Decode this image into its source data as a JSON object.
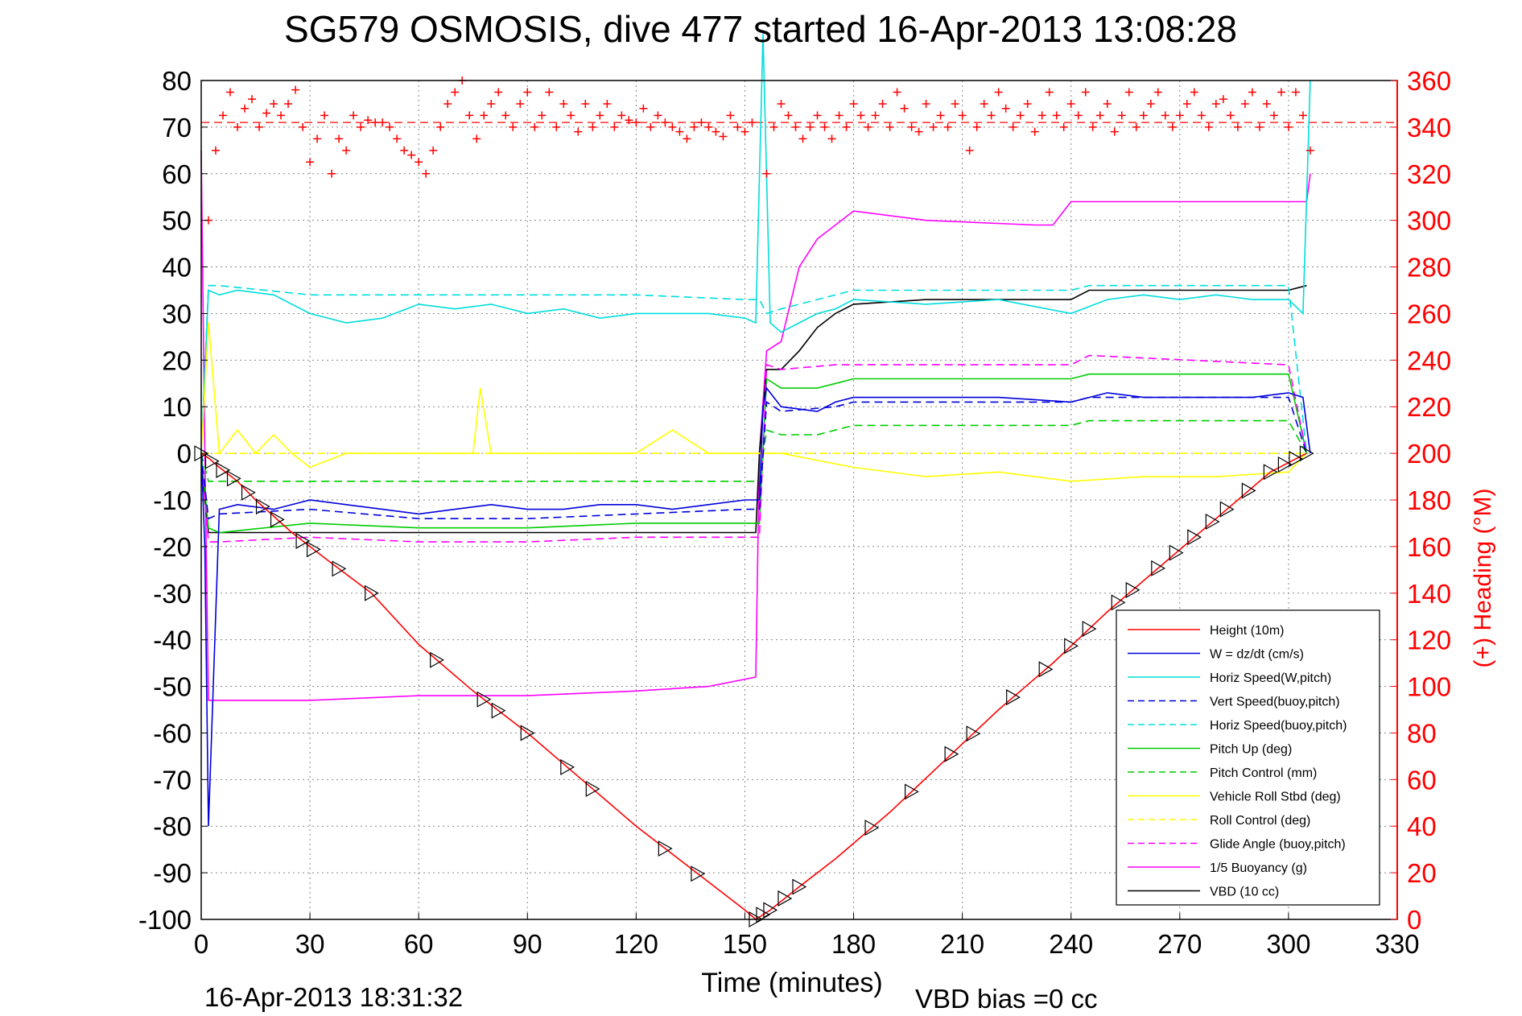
{
  "chart_data": {
    "type": "line",
    "title": "SG579 OSMOSIS, dive 477 started 16-Apr-2013 13:08:28",
    "xlabel": "Time (minutes)",
    "ylabel_right": "(+) Heading (°M)",
    "footer_left": "16-Apr-2013 18:31:32",
    "footer_right": "VBD bias =0 cc",
    "xlim": [
      0,
      330
    ],
    "ylim_left": [
      -100,
      80
    ],
    "ylim_right": [
      0,
      360
    ],
    "x_ticks": [
      0,
      30,
      60,
      90,
      120,
      150,
      180,
      210,
      240,
      270,
      300,
      330
    ],
    "y_ticks_left": [
      80,
      70,
      60,
      50,
      40,
      30,
      20,
      10,
      0,
      -10,
      -20,
      -30,
      -40,
      -50,
      -60,
      -70,
      -80,
      -90,
      -100
    ],
    "y_ticks_right": [
      360,
      340,
      320,
      300,
      280,
      260,
      240,
      220,
      200,
      180,
      160,
      140,
      120,
      100,
      80,
      60,
      40,
      20,
      0
    ],
    "grid": true,
    "legend_position": "lower-right",
    "heading_reference": 342,
    "series": [
      {
        "name": "Height (10m)",
        "color": "#ff0000",
        "style": "solid",
        "axis": "left",
        "x": [
          0,
          2,
          5,
          10,
          15,
          25,
          35,
          47,
          60,
          75,
          90,
          105,
          120,
          135,
          150,
          153,
          157,
          165,
          175,
          190,
          205,
          220,
          235,
          250,
          265,
          280,
          295,
          305
        ],
        "y": [
          0,
          -1,
          -3,
          -6,
          -10,
          -17,
          -23,
          -30,
          -41,
          -51,
          -60,
          -70,
          -80,
          -89,
          -98,
          -100,
          -98,
          -93,
          -87,
          -77,
          -66,
          -55,
          -45,
          -34,
          -24,
          -14,
          -4,
          0
        ]
      },
      {
        "name": "W = dz/dt (cm/s)",
        "color": "#0000dd",
        "style": "solid",
        "axis": "left",
        "x": [
          0,
          1,
          2,
          5,
          10,
          20,
          30,
          40,
          50,
          60,
          70,
          80,
          90,
          100,
          110,
          120,
          130,
          140,
          150,
          154,
          155,
          156,
          160,
          170,
          175,
          180,
          200,
          220,
          240,
          250,
          260,
          270,
          280,
          290,
          300,
          304,
          306
        ],
        "y": [
          0,
          -20,
          -80,
          -12,
          -11,
          -12,
          -10,
          -11,
          -12,
          -13,
          -12,
          -11,
          -12,
          -12,
          -11,
          -11,
          -12,
          -11,
          -10,
          -10,
          10,
          14,
          10,
          9,
          11,
          12,
          12,
          12,
          11,
          13,
          12,
          12,
          12,
          12,
          13,
          12,
          0
        ]
      },
      {
        "name": "Horiz Speed(W,pitch)",
        "color": "#00dddd",
        "style": "solid",
        "axis": "left",
        "x": [
          0,
          2,
          5,
          10,
          20,
          30,
          40,
          50,
          60,
          70,
          80,
          90,
          100,
          110,
          120,
          130,
          140,
          150,
          153,
          155,
          157,
          160,
          165,
          170,
          175,
          180,
          200,
          220,
          240,
          250,
          260,
          270,
          280,
          290,
          300,
          304,
          306
        ],
        "y": [
          0,
          35,
          34,
          35,
          34,
          30,
          28,
          29,
          32,
          31,
          32,
          30,
          31,
          29,
          30,
          30,
          30,
          29,
          28,
          90,
          28,
          26,
          28,
          30,
          31,
          33,
          32,
          33,
          30,
          33,
          34,
          33,
          34,
          33,
          33,
          30,
          80
        ]
      },
      {
        "name": "Vert Speed(buoy,pitch)",
        "color": "#0000dd",
        "style": "dashed",
        "axis": "left",
        "x": [
          0,
          2,
          5,
          30,
          60,
          90,
          120,
          150,
          154,
          156,
          160,
          175,
          180,
          240,
          245,
          300,
          305
        ],
        "y": [
          0,
          -14,
          -13,
          -12,
          -14,
          -14,
          -13,
          -12,
          -12,
          11,
          9,
          10,
          11,
          11,
          12,
          12,
          0
        ]
      },
      {
        "name": "Horiz Speed(buoy,pitch)",
        "color": "#00dddd",
        "style": "dashed",
        "axis": "left",
        "x": [
          0,
          2,
          5,
          30,
          60,
          90,
          120,
          150,
          154,
          156,
          160,
          175,
          180,
          240,
          245,
          300,
          305
        ],
        "y": [
          0,
          36,
          36,
          34,
          34,
          34,
          34,
          33,
          33,
          30,
          31,
          34,
          35,
          35,
          36,
          36,
          0
        ]
      },
      {
        "name": "Pitch Up (deg)",
        "color": "#00cc00",
        "style": "solid",
        "axis": "left",
        "x": [
          0,
          2,
          5,
          30,
          60,
          90,
          120,
          150,
          154,
          156,
          160,
          170,
          175,
          180,
          240,
          245,
          300,
          305
        ],
        "y": [
          0,
          -16,
          -17,
          -15,
          -16,
          -16,
          -15,
          -15,
          -15,
          16,
          14,
          14,
          15,
          16,
          16,
          17,
          17,
          0
        ]
      },
      {
        "name": "Pitch Control (mm)",
        "color": "#00cc00",
        "style": "dashed",
        "axis": "left",
        "x": [
          0,
          2,
          5,
          30,
          60,
          90,
          120,
          150,
          154,
          156,
          160,
          170,
          175,
          180,
          240,
          245,
          300,
          305
        ],
        "y": [
          0,
          -6,
          -6,
          -6,
          -6,
          -6,
          -6,
          -6,
          -6,
          5,
          4,
          4,
          5,
          6,
          6,
          7,
          7,
          0
        ]
      },
      {
        "name": "Vehicle Roll Stbd (deg)",
        "color": "#ffff00",
        "style": "solid",
        "axis": "left",
        "x": [
          0,
          2,
          5,
          10,
          15,
          20,
          25,
          30,
          40,
          60,
          75,
          77,
          80,
          90,
          100,
          120,
          130,
          140,
          150,
          155,
          160,
          180,
          200,
          220,
          240,
          260,
          280,
          300,
          305
        ],
        "y": [
          0,
          28,
          0,
          5,
          0,
          4,
          0,
          -3,
          0,
          0,
          0,
          14,
          0,
          0,
          0,
          0,
          5,
          0,
          0,
          0,
          0,
          -3,
          -5,
          -4,
          -6,
          -5,
          -5,
          -4,
          0
        ]
      },
      {
        "name": "Roll Control (deg)",
        "color": "#ffff00",
        "style": "dashed",
        "axis": "left",
        "x": [
          0,
          300,
          305
        ],
        "y": [
          0,
          0,
          0
        ]
      },
      {
        "name": "Glide Angle (buoy,pitch)",
        "color": "#ff00ff",
        "style": "dashed",
        "axis": "left",
        "x": [
          0,
          2,
          5,
          30,
          60,
          90,
          120,
          150,
          154,
          156,
          160,
          175,
          180,
          240,
          245,
          300,
          305
        ],
        "y": [
          0,
          -19,
          -19,
          -18,
          -19,
          -19,
          -18,
          -18,
          -18,
          19,
          18,
          19,
          19,
          19,
          21,
          19,
          0
        ]
      },
      {
        "name": "1/5 Buoyancy (g)",
        "color": "#ff00ff",
        "style": "solid",
        "axis": "left",
        "x": [
          0,
          1,
          2,
          5,
          30,
          60,
          90,
          120,
          140,
          153,
          154,
          156,
          160,
          165,
          170,
          175,
          180,
          200,
          230,
          235,
          240,
          300,
          305,
          306
        ],
        "y": [
          65,
          0,
          -53,
          -53,
          -53,
          -52,
          -52,
          -51,
          -50,
          -48,
          0,
          22,
          24,
          40,
          46,
          49,
          52,
          50,
          49,
          49,
          54,
          54,
          54,
          60
        ]
      },
      {
        "name": "VBD (10 cc)",
        "color": "#000000",
        "style": "solid",
        "axis": "left",
        "x": [
          0,
          1,
          2,
          153,
          154,
          156,
          160,
          165,
          170,
          175,
          180,
          200,
          240,
          245,
          300,
          305
        ],
        "y": [
          0,
          -10,
          -17,
          -17,
          0,
          18,
          18,
          22,
          27,
          30,
          32,
          33,
          33,
          35,
          35,
          36
        ]
      },
      {
        "name": "Heading",
        "color": "#ff0000",
        "style": "plus-markers",
        "axis": "right",
        "x": [
          2,
          4,
          6,
          8,
          10,
          12,
          14,
          16,
          18,
          20,
          22,
          24,
          26,
          28,
          30,
          32,
          34,
          36,
          38,
          40,
          42,
          44,
          46,
          48,
          50,
          52,
          54,
          56,
          58,
          60,
          62,
          64,
          66,
          68,
          70,
          72,
          74,
          76,
          78,
          80,
          82,
          84,
          86,
          88,
          90,
          92,
          94,
          96,
          98,
          100,
          102,
          104,
          106,
          108,
          110,
          112,
          114,
          116,
          118,
          120,
          122,
          124,
          126,
          128,
          130,
          132,
          134,
          136,
          138,
          140,
          142,
          144,
          146,
          148,
          150,
          152,
          156,
          158,
          160,
          162,
          164,
          166,
          168,
          170,
          172,
          174,
          176,
          178,
          180,
          182,
          184,
          186,
          188,
          190,
          192,
          194,
          196,
          198,
          200,
          202,
          204,
          206,
          208,
          210,
          212,
          214,
          216,
          218,
          220,
          222,
          224,
          226,
          228,
          230,
          232,
          234,
          236,
          238,
          240,
          242,
          244,
          246,
          248,
          250,
          252,
          254,
          256,
          258,
          260,
          262,
          264,
          266,
          268,
          270,
          272,
          274,
          276,
          278,
          280,
          282,
          284,
          286,
          288,
          290,
          292,
          294,
          296,
          298,
          300,
          302,
          304,
          306
        ],
        "y": [
          300,
          330,
          345,
          355,
          340,
          348,
          352,
          340,
          346,
          350,
          345,
          350,
          356,
          340,
          325,
          335,
          345,
          320,
          335,
          330,
          345,
          340,
          343,
          342,
          342,
          340,
          335,
          330,
          328,
          325,
          320,
          330,
          340,
          350,
          355,
          360,
          345,
          335,
          345,
          350,
          355,
          345,
          340,
          350,
          355,
          340,
          345,
          355,
          340,
          350,
          345,
          338,
          350,
          340,
          345,
          350,
          340,
          345,
          343,
          342,
          348,
          340,
          345,
          342,
          340,
          338,
          335,
          340,
          342,
          340,
          338,
          336,
          345,
          340,
          338,
          342,
          320,
          340,
          350,
          345,
          340,
          335,
          340,
          345,
          340,
          335,
          345,
          340,
          350,
          345,
          340,
          345,
          350,
          340,
          355,
          348,
          340,
          338,
          350,
          340,
          345,
          340,
          350,
          345,
          330,
          340,
          350,
          345,
          355,
          348,
          340,
          345,
          350,
          338,
          345,
          355,
          345,
          340,
          350,
          345,
          355,
          340,
          345,
          350,
          338,
          345,
          355,
          340,
          345,
          350,
          355,
          345,
          340,
          345,
          350,
          355,
          345,
          340,
          350,
          352,
          345,
          340,
          350,
          355,
          340,
          350,
          345,
          355,
          340,
          355,
          345,
          330
        ]
      }
    ],
    "legend": [
      "Height (10m)",
      "W = dz/dt (cm/s)",
      "Horiz Speed(W,pitch)",
      "Vert Speed(buoy,pitch)",
      "Horiz Speed(buoy,pitch)",
      "Pitch Up (deg)",
      "Pitch Control (mm)",
      "Vehicle Roll Stbd (deg)",
      "Roll Control (deg)",
      "Glide Angle (buoy,pitch)",
      "1/5 Buoyancy (g)",
      "VBD (10 cc)"
    ],
    "height_markers_x": [
      0,
      3,
      6,
      9,
      13,
      17,
      21,
      28,
      31,
      38,
      47,
      65,
      78,
      82,
      90,
      101,
      108,
      128,
      137,
      153,
      155,
      157,
      161,
      165,
      185,
      196,
      207,
      213,
      224,
      233,
      240,
      245,
      253,
      257,
      264,
      269,
      274,
      279,
      283,
      289,
      295,
      299,
      302,
      305
    ]
  }
}
